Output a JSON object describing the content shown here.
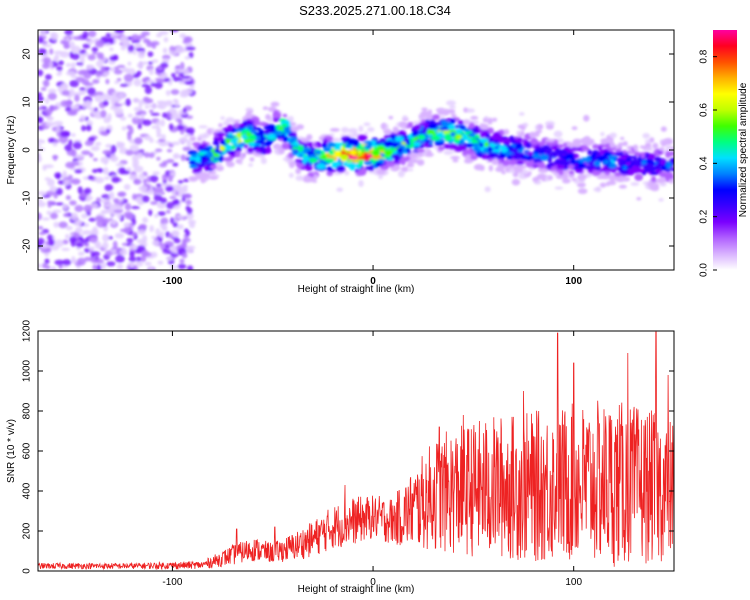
{
  "title": "S233.2025.271.00.18.C34",
  "colors": {
    "snr_line": "#ee2222",
    "frame": "#000000",
    "colorscale": [
      "#ffffff",
      "#d9b3ff",
      "#b060ff",
      "#7a00ff",
      "#3a00ff",
      "#0000ff",
      "#0080ff",
      "#00e0ff",
      "#00ff80",
      "#40ff00",
      "#c0ff00",
      "#ffff00",
      "#ffb000",
      "#ff5000",
      "#ff0020",
      "#ff00a0"
    ]
  },
  "chart_data": [
    {
      "type": "heatmap",
      "title": "S233.2025.271.00.18.C34",
      "xlabel": "Height of straight line (km)",
      "ylabel": "Frequency (Hz)",
      "xlim": [
        -167,
        150
      ],
      "ylim": [
        -25,
        25
      ],
      "xticks": [
        -100,
        0,
        100
      ],
      "xtick_labels": [
        "-100",
        "0",
        "100"
      ],
      "yticks": [
        -20,
        -10,
        0,
        10,
        20
      ],
      "ytick_labels": [
        "-20",
        "-10",
        "0",
        "10",
        "20"
      ],
      "colorbar": {
        "label": "Normalized spectral amplitude",
        "range": [
          0,
          0.9
        ],
        "ticks": [
          0.0,
          0.2,
          0.4,
          0.6,
          0.8
        ],
        "tick_labels": [
          "0.0",
          "0.2",
          "0.4",
          "0.6",
          "0.8"
        ]
      },
      "noise_region_x": [
        -167,
        -90
      ],
      "signal_ridge": {
        "x": [
          -90,
          -80,
          -70,
          -62,
          -55,
          -45,
          -38,
          -30,
          -20,
          -10,
          0,
          8,
          15,
          25,
          35,
          45,
          55,
          70,
          85,
          100,
          115,
          130,
          150
        ],
        "frequency": [
          -2,
          -1,
          2,
          3,
          2,
          5,
          0,
          -2,
          -1,
          -1,
          -1,
          0,
          1,
          3,
          4,
          3,
          1,
          0,
          -1,
          -2,
          -2,
          -3,
          -3
        ],
        "amplitude": [
          0.4,
          0.5,
          0.6,
          0.5,
          0.45,
          0.5,
          0.4,
          0.45,
          0.7,
          0.85,
          0.75,
          0.55,
          0.5,
          0.45,
          0.55,
          0.5,
          0.45,
          0.35,
          0.3,
          0.3,
          0.35,
          0.3,
          0.3
        ]
      }
    },
    {
      "type": "line",
      "xlabel": "Height of straight line (km)",
      "ylabel": "SNR (10 * v/v)",
      "xlim": [
        -167,
        150
      ],
      "ylim": [
        0,
        1200
      ],
      "xticks": [
        -100,
        0,
        100
      ],
      "xtick_labels": [
        "-100",
        "0",
        "100"
      ],
      "yticks": [
        0,
        200,
        400,
        600,
        800,
        1000,
        1200
      ],
      "ytick_labels": [
        "0",
        "200",
        "400",
        "600",
        "800",
        "1000",
        "1200"
      ],
      "series": [
        {
          "name": "SNR",
          "color": "#ee2222",
          "envelope_x": [
            -167,
            -120,
            -85,
            -70,
            -60,
            -50,
            -40,
            -30,
            -20,
            -10,
            0,
            10,
            20,
            30,
            40,
            60,
            80,
            100,
            120,
            140,
            150
          ],
          "envelope_mean": [
            25,
            25,
            30,
            80,
            110,
            90,
            120,
            160,
            220,
            250,
            270,
            250,
            310,
            380,
            400,
            420,
            420,
            440,
            440,
            420,
            400
          ],
          "envelope_spread": [
            15,
            15,
            20,
            50,
            60,
            50,
            70,
            90,
            110,
            120,
            110,
            120,
            200,
            280,
            320,
            360,
            380,
            400,
            420,
            380,
            350
          ],
          "peaks": [
            {
              "x": -68,
              "y": 210
            },
            {
              "x": -49,
              "y": 220
            },
            {
              "x": -14,
              "y": 430
            },
            {
              "x": 33,
              "y": 720
            },
            {
              "x": 45,
              "y": 780
            },
            {
              "x": 75,
              "y": 900
            },
            {
              "x": 92,
              "y": 1190
            },
            {
              "x": 100,
              "y": 1040
            },
            {
              "x": 127,
              "y": 1090
            },
            {
              "x": 141,
              "y": 1195
            },
            {
              "x": 147,
              "y": 980
            }
          ]
        }
      ]
    }
  ]
}
